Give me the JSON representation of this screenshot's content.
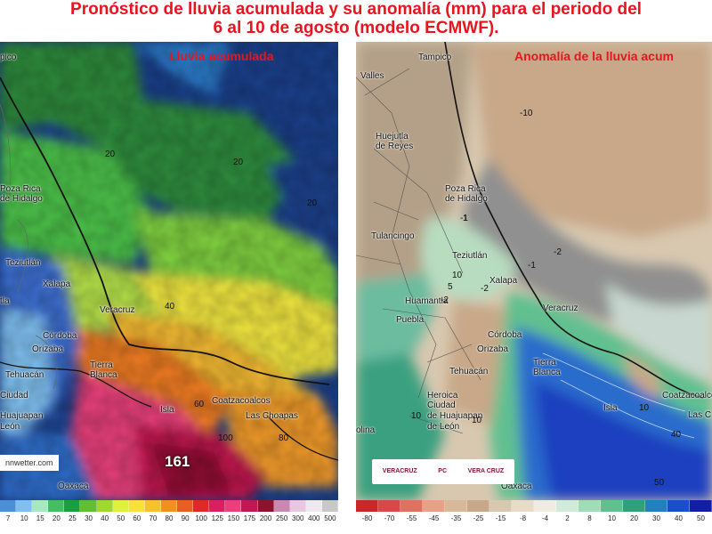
{
  "title": {
    "line1": "Pronóstico de lluvia acumulada y su anomalía (mm) para el periodo del",
    "line2": "6 al 10 de agosto  (modelo ECMWF)."
  },
  "left_panel": {
    "label": "Lluvia acumulada",
    "cities": [
      "pico",
      "Poza Rica",
      "de Hidalgo",
      "Teziutlán",
      "Xalapa",
      "tla",
      "Veracruz",
      "Córdoba",
      "Orizaba",
      "Tehuacán",
      "Tierra",
      "Blanca",
      "Coatzacoalcos",
      "Las Choapas",
      "Ciudad",
      "Huajuapan",
      "León",
      "Isla",
      "Oaxaca"
    ],
    "contours": [
      "20",
      "20",
      "20",
      "40",
      "60",
      "80",
      "100"
    ],
    "max_value": "161",
    "watermark": "nnwetter.com",
    "colorbar_labels": [
      "7",
      "10",
      "15",
      "20",
      "25",
      "30",
      "40",
      "50",
      "60",
      "70",
      "80",
      "90",
      "100",
      "125",
      "150",
      "175",
      "200",
      "250",
      "300",
      "400",
      "500"
    ],
    "colorbar_colors": [
      "#4a90d8",
      "#7fc0f0",
      "#a8e8c0",
      "#40c060",
      "#18a040",
      "#60c030",
      "#a0d830",
      "#e0f040",
      "#f8e040",
      "#f8c030",
      "#f09020",
      "#e86020",
      "#e02828",
      "#d82060",
      "#e8407a",
      "#c01850",
      "#901030",
      "#c888b0",
      "#e8c8e0",
      "#f0e8f0",
      "#c8c8c8"
    ]
  },
  "right_panel": {
    "label": "Anomalía de la lluvia acum",
    "cities": [
      "Tampico",
      "Valles",
      "Huejutla",
      "de Reyes",
      "Poza Rica",
      "de Hidalgo",
      "Tulancingo",
      "Teziutlán",
      "Xalapa",
      "Huamantla",
      "Puebla",
      "Veracruz",
      "Córdoba",
      "Orizaba",
      "Tehuacán",
      "Tierra",
      "Blanca",
      "Heroica",
      "Ciudad",
      "de Huajuapan",
      "de León",
      "Oaxaca",
      "Isla",
      "Coatzacoalcos",
      "Las C",
      "olina"
    ],
    "contours": [
      "-10",
      "-2",
      "-1",
      "-2",
      "-2",
      "-1",
      "1",
      "10",
      "5",
      "10",
      "10",
      "10",
      "40",
      "50"
    ],
    "logos": [
      "VERACRUZ",
      "PC",
      "VERA CRUZ"
    ],
    "colorbar_labels": [
      "-80",
      "-70",
      "-55",
      "-45",
      "-35",
      "-25",
      "-15",
      "-8",
      "-4",
      "2",
      "8",
      "10",
      "20",
      "30",
      "40",
      "50"
    ],
    "colorbar_colors": [
      "#c82828",
      "#d84848",
      "#e07060",
      "#e8a088",
      "#d8b898",
      "#c8a888",
      "#d8c8b0",
      "#e8dcc8",
      "#f0ece0",
      "#d0ecd8",
      "#a0dcb8",
      "#60c090",
      "#30a078",
      "#2080c0",
      "#1850c8",
      "#1020a0"
    ]
  }
}
